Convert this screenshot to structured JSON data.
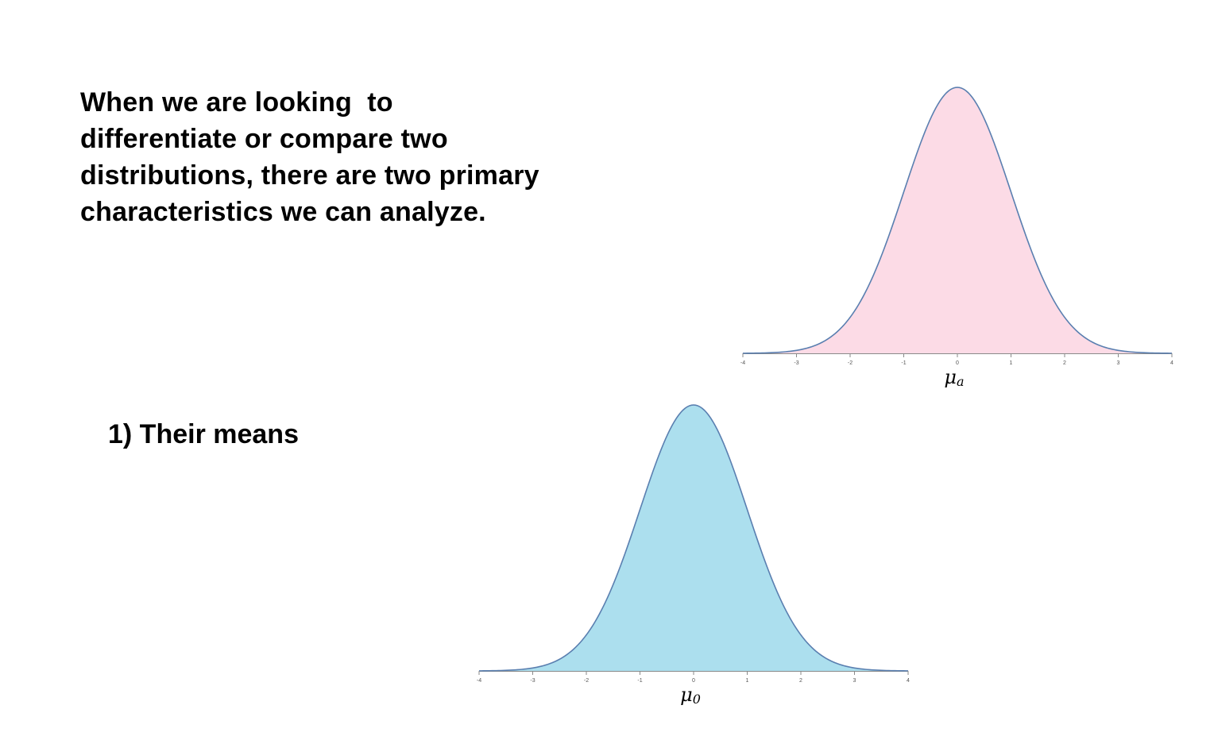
{
  "intro": {
    "lines": [
      "When we are looking  to",
      "differentiate or compare two",
      "distributions, there are two primary",
      "characteristics we can analyze."
    ]
  },
  "point": {
    "text": "1) Their means"
  },
  "colors": {
    "pink_fill": "#fcdbe6",
    "blue_fill": "#acdfee",
    "curve_stroke": "#5a7fb0",
    "axis_color": "#8a8a8a"
  },
  "chart_data": [
    {
      "type": "area",
      "id": "chart-a",
      "distribution": "normal",
      "mean": 0,
      "sd": 1,
      "xlim": [
        -4,
        4
      ],
      "ticks": [
        -4,
        -3,
        -2,
        -1,
        0,
        1,
        2,
        3,
        4
      ],
      "tick_labels": [
        "-4",
        "-3",
        "-2",
        "-1",
        "0",
        "1",
        "2",
        "3",
        "4"
      ],
      "label_main": "μ",
      "label_sub": "a",
      "fill": "#fcdbe6",
      "grid": false
    },
    {
      "type": "area",
      "id": "chart-0",
      "distribution": "normal",
      "mean": 0,
      "sd": 1,
      "xlim": [
        -4,
        4
      ],
      "ticks": [
        -4,
        -3,
        -2,
        -1,
        0,
        1,
        2,
        3,
        4
      ],
      "tick_labels": [
        "-4",
        "-3",
        "-2",
        "-1",
        "0",
        "1",
        "2",
        "3",
        "4"
      ],
      "label_main": "μ",
      "label_sub": "0",
      "fill": "#acdfee",
      "grid": false
    }
  ]
}
